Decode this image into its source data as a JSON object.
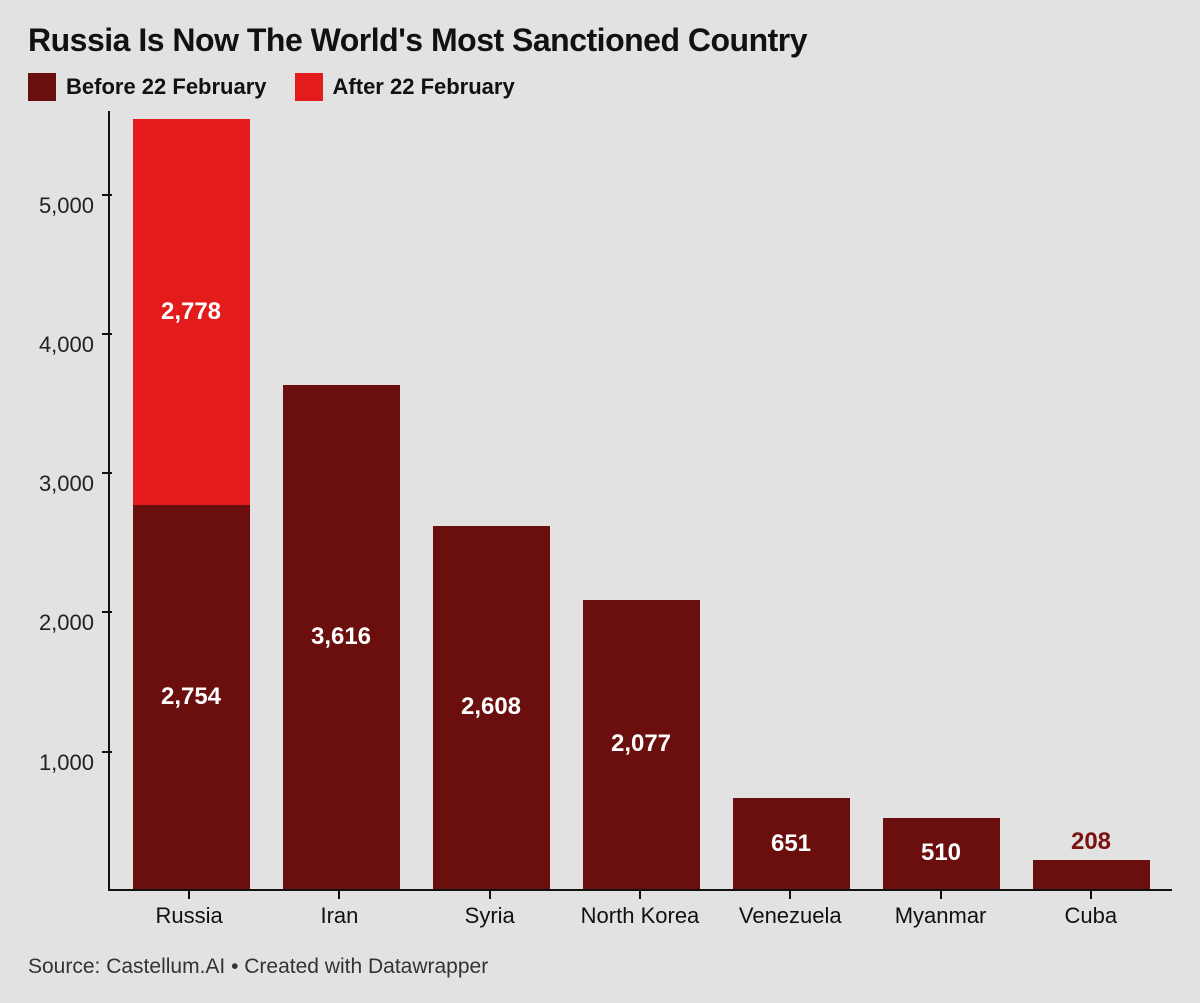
{
  "title": "Russia Is Now The World's Most Sanctioned Country",
  "legend": {
    "before": {
      "label": "Before 22 February",
      "color": "#6a0e0e"
    },
    "after": {
      "label": "After 22 February",
      "color": "#e31b1b"
    }
  },
  "chart": {
    "type": "stacked-bar",
    "background_color": "#e2e2e2",
    "axis_color": "#111111",
    "label_color_inside": "#ffffff",
    "label_color_outside": "#7a1212",
    "title_fontsize": 32,
    "axis_fontsize": 22,
    "datalabel_fontsize": 24,
    "y": {
      "min": 0,
      "max": 5600,
      "ticks": [
        1000,
        2000,
        3000,
        4000,
        5000
      ],
      "tick_labels": [
        "1,000",
        "2,000",
        "3,000",
        "4,000",
        "5,000"
      ]
    },
    "bar_width_ratio": 0.78,
    "categories": [
      "Russia",
      "Iran",
      "Syria",
      "North Korea",
      "Venezuela",
      "Myanmar",
      "Cuba"
    ],
    "series": [
      {
        "name": "before",
        "color": "#6a0e0e",
        "values": [
          2754,
          3616,
          2608,
          2077,
          651,
          510,
          208
        ],
        "value_labels": [
          "2,754",
          "3,616",
          "2,608",
          "2,077",
          "651",
          "510",
          "208"
        ]
      },
      {
        "name": "after",
        "color": "#e31b1b",
        "values": [
          2778,
          0,
          0,
          0,
          0,
          0,
          0
        ],
        "value_labels": [
          "2,778",
          "",
          "",
          "",
          "",
          "",
          ""
        ]
      }
    ],
    "label_outside_threshold": 300
  },
  "footer": "Source: Castellum.AI • Created with Datawrapper"
}
